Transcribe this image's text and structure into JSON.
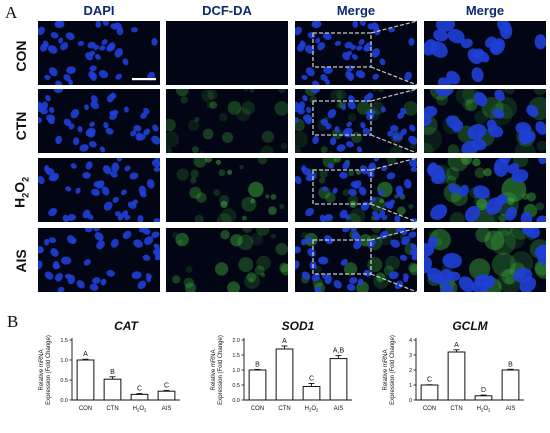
{
  "panel_a_letter": "A",
  "panel_b_letter": "B",
  "columns": [
    "DAPI",
    "DCF-DA",
    "Merge",
    "Merge"
  ],
  "rows": [
    "CON",
    "CTN",
    "H2O2",
    "AIS"
  ],
  "row_h2o2": {
    "main": "H",
    "sub1": "2",
    "mid": "O",
    "sub2": "2"
  },
  "microscopy": {
    "nuclei_color": "#1f3fd6",
    "background_color": "#020514",
    "green_color": "#3fae3a",
    "inset_box_color": "#c9c9c9",
    "green_intensity": [
      0.02,
      0.45,
      0.65,
      0.55
    ]
  },
  "chart_data": [
    {
      "type": "bar",
      "title": "CAT",
      "ylabel_line1": "Relative mRNA",
      "ylabel_line2": "Expression (Fold Change)",
      "categories": [
        "CON",
        "CTN",
        "H2O2",
        "AIS"
      ],
      "values": [
        1.0,
        0.52,
        0.14,
        0.22
      ],
      "errors": [
        0.02,
        0.06,
        0.02,
        0.02
      ],
      "significance": [
        "A",
        "B",
        "C",
        "C"
      ],
      "ylim": [
        0,
        1.5
      ],
      "yticks": [
        "0.0",
        "0.5",
        "1.0",
        "1.5"
      ],
      "ytick_values": [
        0,
        0.5,
        1.0,
        1.5
      ]
    },
    {
      "type": "bar",
      "title": "SOD1",
      "ylabel_line1": "Relative mRNA",
      "ylabel_line2": "Expression (Fold Change)",
      "categories": [
        "CON",
        "CTN",
        "H2O2",
        "AIS"
      ],
      "values": [
        1.0,
        1.7,
        0.45,
        1.38
      ],
      "errors": [
        0.02,
        0.1,
        0.1,
        0.1
      ],
      "significance": [
        "B",
        "A",
        "C",
        "A,B"
      ],
      "ylim": [
        0,
        2.0
      ],
      "yticks": [
        "0.0",
        "0.5",
        "1.0",
        "1.5",
        "2.0"
      ],
      "ytick_values": [
        0,
        0.5,
        1.0,
        1.5,
        2.0
      ]
    },
    {
      "type": "bar",
      "title": "GCLM",
      "ylabel_line1": "Relative mRNA",
      "ylabel_line2": "Expression (Fold Change)",
      "categories": [
        "CON",
        "CTN",
        "H2O2",
        "AIS"
      ],
      "values": [
        1.0,
        3.2,
        0.28,
        2.0
      ],
      "errors": [
        0.02,
        0.15,
        0.05,
        0.05
      ],
      "significance": [
        "C",
        "A",
        "D",
        "B"
      ],
      "ylim": [
        0,
        4
      ],
      "yticks": [
        "0",
        "1",
        "2",
        "3",
        "4"
      ],
      "ytick_values": [
        0,
        1,
        2,
        3,
        4
      ]
    }
  ]
}
